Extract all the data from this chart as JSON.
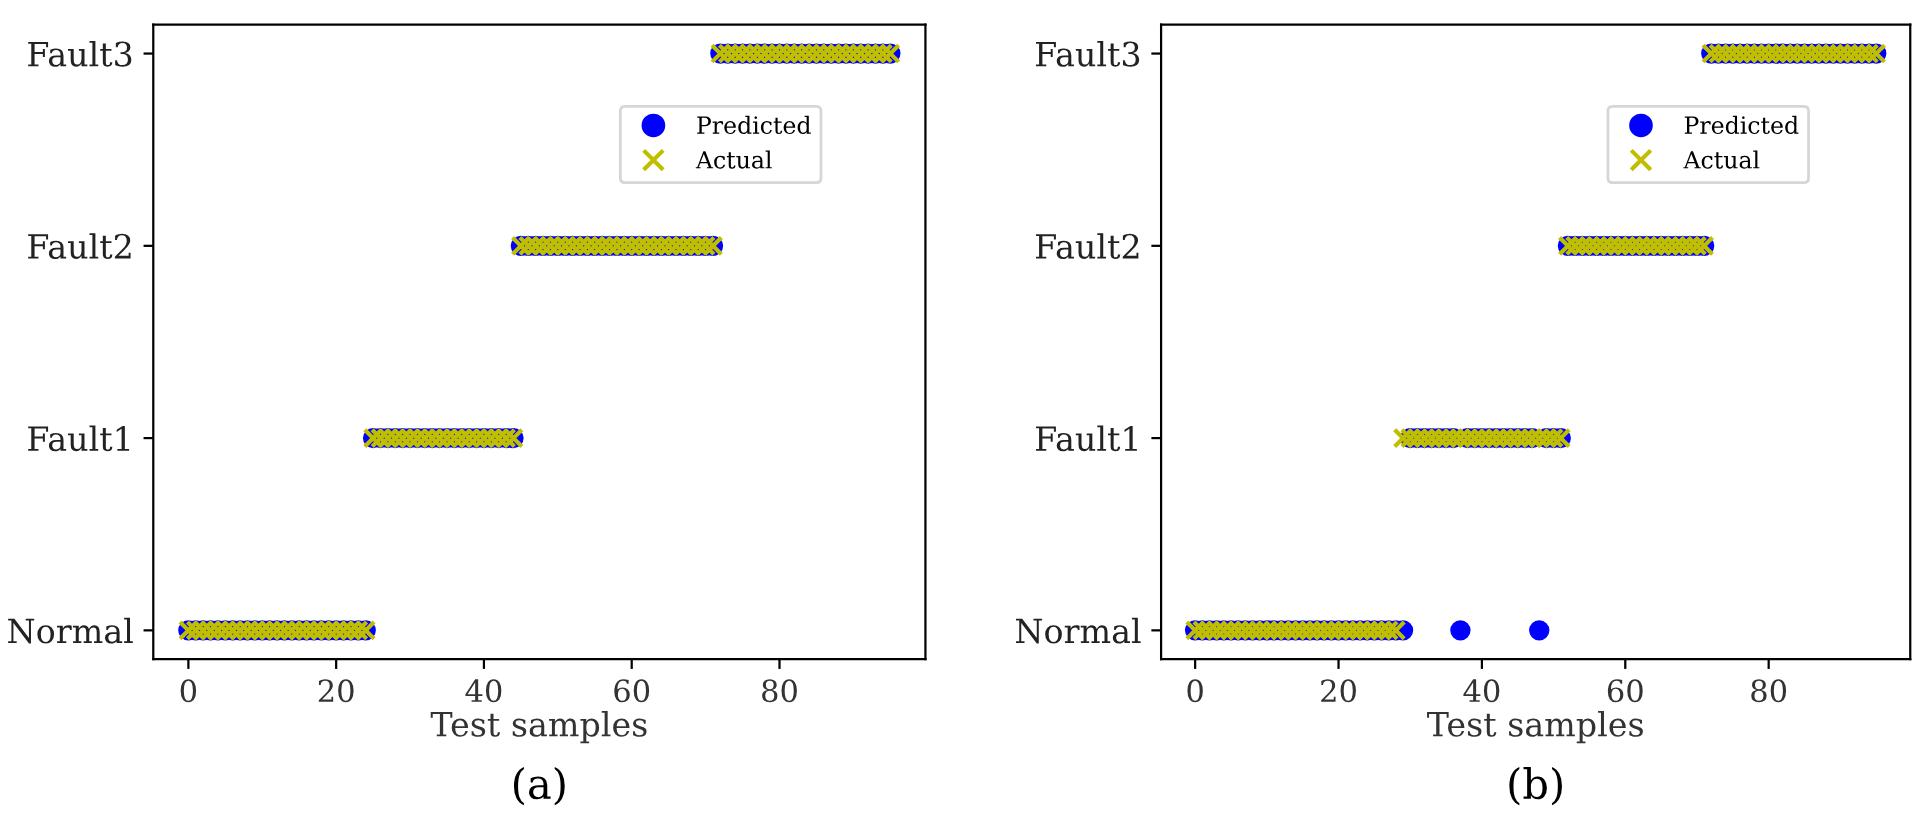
{
  "chart_data": [
    {
      "type": "scatter",
      "orientation": "horizontal",
      "xlabel": "Test samples",
      "annotations": [
        "(a)"
      ],
      "xlim": [
        -4.75,
        99.75
      ],
      "xticks": [
        0,
        20,
        40,
        60,
        80
      ],
      "categories": [
        "Fault3",
        "Fault2",
        "Fault1",
        "Normal"
      ],
      "legend": "top right",
      "grid": false,
      "series": [
        {
          "name": "Predicted",
          "color": "#0000ff",
          "marker": "circle",
          "values": [
            0,
            1,
            2,
            3,
            4,
            5,
            6,
            7,
            8,
            9,
            10,
            11,
            12,
            13,
            14,
            15,
            16,
            17,
            18,
            19,
            20,
            21,
            22,
            23,
            24,
            25,
            26,
            27,
            28,
            29,
            30,
            31,
            32,
            33,
            34,
            35,
            36,
            37,
            38,
            39,
            40,
            41,
            42,
            43,
            44,
            45,
            46,
            47,
            48,
            49,
            50,
            51,
            52,
            53,
            54,
            55,
            56,
            57,
            58,
            59,
            60,
            61,
            62,
            63,
            64,
            65,
            66,
            67,
            68,
            69,
            70,
            71,
            72,
            73,
            74,
            75,
            76,
            77,
            78,
            79,
            80,
            81,
            82,
            83,
            84,
            85,
            86,
            87,
            88,
            89,
            90,
            91,
            92,
            93,
            94,
            95
          ],
          "x": [
            "Normal",
            "Normal",
            "Normal",
            "Normal",
            "Normal",
            "Normal",
            "Normal",
            "Normal",
            "Normal",
            "Normal",
            "Normal",
            "Normal",
            "Normal",
            "Normal",
            "Normal",
            "Normal",
            "Normal",
            "Normal",
            "Normal",
            "Normal",
            "Normal",
            "Normal",
            "Normal",
            "Normal",
            "Normal",
            "Fault1",
            "Fault1",
            "Fault1",
            "Fault1",
            "Fault1",
            "Fault1",
            "Fault1",
            "Fault1",
            "Fault1",
            "Fault1",
            "Fault1",
            "Fault1",
            "Fault1",
            "Fault1",
            "Fault1",
            "Fault1",
            "Fault1",
            "Fault1",
            "Fault1",
            "Fault1",
            "Fault2",
            "Fault2",
            "Fault2",
            "Fault2",
            "Fault2",
            "Fault2",
            "Fault2",
            "Fault2",
            "Fault2",
            "Fault2",
            "Fault2",
            "Fault2",
            "Fault2",
            "Fault2",
            "Fault2",
            "Fault2",
            "Fault2",
            "Fault2",
            "Fault2",
            "Fault2",
            "Fault2",
            "Fault2",
            "Fault2",
            "Fault2",
            "Fault2",
            "Fault2",
            "Fault2",
            "Fault3",
            "Fault3",
            "Fault3",
            "Fault3",
            "Fault3",
            "Fault3",
            "Fault3",
            "Fault3",
            "Fault3",
            "Fault3",
            "Fault3",
            "Fault3",
            "Fault3",
            "Fault3",
            "Fault3",
            "Fault3",
            "Fault3",
            "Fault3",
            "Fault3",
            "Fault3",
            "Fault3",
            "Fault3",
            "Fault3",
            "Fault3"
          ]
        },
        {
          "name": "Actual",
          "color": "#bfbf00",
          "marker": "cross",
          "values": [
            0,
            1,
            2,
            3,
            4,
            5,
            6,
            7,
            8,
            9,
            10,
            11,
            12,
            13,
            14,
            15,
            16,
            17,
            18,
            19,
            20,
            21,
            22,
            23,
            24,
            25,
            26,
            27,
            28,
            29,
            30,
            31,
            32,
            33,
            34,
            35,
            36,
            37,
            38,
            39,
            40,
            41,
            42,
            43,
            44,
            45,
            46,
            47,
            48,
            49,
            50,
            51,
            52,
            53,
            54,
            55,
            56,
            57,
            58,
            59,
            60,
            61,
            62,
            63,
            64,
            65,
            66,
            67,
            68,
            69,
            70,
            71,
            72,
            73,
            74,
            75,
            76,
            77,
            78,
            79,
            80,
            81,
            82,
            83,
            84,
            85,
            86,
            87,
            88,
            89,
            90,
            91,
            92,
            93,
            94,
            95
          ],
          "x": [
            "Normal",
            "Normal",
            "Normal",
            "Normal",
            "Normal",
            "Normal",
            "Normal",
            "Normal",
            "Normal",
            "Normal",
            "Normal",
            "Normal",
            "Normal",
            "Normal",
            "Normal",
            "Normal",
            "Normal",
            "Normal",
            "Normal",
            "Normal",
            "Normal",
            "Normal",
            "Normal",
            "Normal",
            "Normal",
            "Fault1",
            "Fault1",
            "Fault1",
            "Fault1",
            "Fault1",
            "Fault1",
            "Fault1",
            "Fault1",
            "Fault1",
            "Fault1",
            "Fault1",
            "Fault1",
            "Fault1",
            "Fault1",
            "Fault1",
            "Fault1",
            "Fault1",
            "Fault1",
            "Fault1",
            "Fault1",
            "Fault2",
            "Fault2",
            "Fault2",
            "Fault2",
            "Fault2",
            "Fault2",
            "Fault2",
            "Fault2",
            "Fault2",
            "Fault2",
            "Fault2",
            "Fault2",
            "Fault2",
            "Fault2",
            "Fault2",
            "Fault2",
            "Fault2",
            "Fault2",
            "Fault2",
            "Fault2",
            "Fault2",
            "Fault2",
            "Fault2",
            "Fault2",
            "Fault2",
            "Fault2",
            "Fault2",
            "Fault3",
            "Fault3",
            "Fault3",
            "Fault3",
            "Fault3",
            "Fault3",
            "Fault3",
            "Fault3",
            "Fault3",
            "Fault3",
            "Fault3",
            "Fault3",
            "Fault3",
            "Fault3",
            "Fault3",
            "Fault3",
            "Fault3",
            "Fault3",
            "Fault3",
            "Fault3",
            "Fault3",
            "Fault3",
            "Fault3",
            "Fault3"
          ]
        }
      ]
    },
    {
      "type": "scatter",
      "orientation": "horizontal",
      "xlabel": "Test samples",
      "annotations": [
        "(b)"
      ],
      "xlim": [
        -4.75,
        99.75
      ],
      "xticks": [
        0,
        20,
        40,
        60,
        80
      ],
      "categories": [
        "Fault3",
        "Fault2",
        "Fault1",
        "Normal"
      ],
      "legend": "top right",
      "grid": false,
      "series": [
        {
          "name": "Predicted",
          "color": "#0000ff",
          "marker": "circle",
          "values": [
            0,
            1,
            2,
            3,
            4,
            5,
            6,
            7,
            8,
            9,
            10,
            11,
            12,
            13,
            14,
            15,
            16,
            17,
            18,
            19,
            20,
            21,
            22,
            23,
            24,
            25,
            26,
            27,
            28,
            29,
            30,
            31,
            32,
            33,
            34,
            35,
            36,
            37,
            38,
            39,
            40,
            41,
            42,
            43,
            44,
            45,
            46,
            47,
            48,
            49,
            50,
            51,
            52,
            53,
            54,
            55,
            56,
            57,
            58,
            59,
            60,
            61,
            62,
            63,
            64,
            65,
            66,
            67,
            68,
            69,
            70,
            71,
            72,
            73,
            74,
            75,
            76,
            77,
            78,
            79,
            80,
            81,
            82,
            83,
            84,
            85,
            86,
            87,
            88,
            89,
            90,
            91,
            92,
            93,
            94,
            95
          ],
          "x": [
            "Normal",
            "Normal",
            "Normal",
            "Normal",
            "Normal",
            "Normal",
            "Normal",
            "Normal",
            "Normal",
            "Normal",
            "Normal",
            "Normal",
            "Normal",
            "Normal",
            "Normal",
            "Normal",
            "Normal",
            "Normal",
            "Normal",
            "Normal",
            "Normal",
            "Normal",
            "Normal",
            "Normal",
            "Normal",
            "Normal",
            "Normal",
            "Normal",
            "Normal",
            "Normal",
            "Fault1",
            "Fault1",
            "Fault1",
            "Fault1",
            "Fault1",
            "Fault1",
            "Fault1",
            "Normal",
            "Fault1",
            "Fault1",
            "Fault1",
            "Fault1",
            "Fault1",
            "Fault1",
            "Fault1",
            "Fault1",
            "Fault1",
            "Fault1",
            "Normal",
            "Fault1",
            "Fault1",
            "Fault1",
            "Fault2",
            "Fault2",
            "Fault2",
            "Fault2",
            "Fault2",
            "Fault2",
            "Fault2",
            "Fault2",
            "Fault2",
            "Fault2",
            "Fault2",
            "Fault2",
            "Fault2",
            "Fault2",
            "Fault2",
            "Fault2",
            "Fault2",
            "Fault2",
            "Fault2",
            "Fault2",
            "Fault3",
            "Fault3",
            "Fault3",
            "Fault3",
            "Fault3",
            "Fault3",
            "Fault3",
            "Fault3",
            "Fault3",
            "Fault3",
            "Fault3",
            "Fault3",
            "Fault3",
            "Fault3",
            "Fault3",
            "Fault3",
            "Fault3",
            "Fault3",
            "Fault3",
            "Fault3",
            "Fault3",
            "Fault3",
            "Fault3",
            "Fault3"
          ]
        },
        {
          "name": "Actual",
          "color": "#bfbf00",
          "marker": "cross",
          "values": [
            0,
            1,
            2,
            3,
            4,
            5,
            6,
            7,
            8,
            9,
            10,
            11,
            12,
            13,
            14,
            15,
            16,
            17,
            18,
            19,
            20,
            21,
            22,
            23,
            24,
            25,
            26,
            27,
            28,
            29,
            30,
            31,
            32,
            33,
            34,
            35,
            36,
            37,
            38,
            39,
            40,
            41,
            42,
            43,
            44,
            45,
            46,
            47,
            48,
            49,
            50,
            51,
            52,
            53,
            54,
            55,
            56,
            57,
            58,
            59,
            60,
            61,
            62,
            63,
            64,
            65,
            66,
            67,
            68,
            69,
            70,
            71,
            72,
            73,
            74,
            75,
            76,
            77,
            78,
            79,
            80,
            81,
            82,
            83,
            84,
            85,
            86,
            87,
            88,
            89,
            90,
            91,
            92,
            93,
            94,
            95
          ],
          "x": [
            "Normal",
            "Normal",
            "Normal",
            "Normal",
            "Normal",
            "Normal",
            "Normal",
            "Normal",
            "Normal",
            "Normal",
            "Normal",
            "Normal",
            "Normal",
            "Normal",
            "Normal",
            "Normal",
            "Normal",
            "Normal",
            "Normal",
            "Normal",
            "Normal",
            "Normal",
            "Normal",
            "Normal",
            "Normal",
            "Normal",
            "Normal",
            "Normal",
            "Normal",
            "Fault1",
            "Fault1",
            "Fault1",
            "Fault1",
            "Fault1",
            "Fault1",
            "Fault1",
            "Fault1",
            "Fault1",
            "Fault1",
            "Fault1",
            "Fault1",
            "Fault1",
            "Fault1",
            "Fault1",
            "Fault1",
            "Fault1",
            "Fault1",
            "Fault1",
            "Fault1",
            "Fault1",
            "Fault1",
            "Fault1",
            "Fault2",
            "Fault2",
            "Fault2",
            "Fault2",
            "Fault2",
            "Fault2",
            "Fault2",
            "Fault2",
            "Fault2",
            "Fault2",
            "Fault2",
            "Fault2",
            "Fault2",
            "Fault2",
            "Fault2",
            "Fault2",
            "Fault2",
            "Fault2",
            "Fault2",
            "Fault2",
            "Fault3",
            "Fault3",
            "Fault3",
            "Fault3",
            "Fault3",
            "Fault3",
            "Fault3",
            "Fault3",
            "Fault3",
            "Fault3",
            "Fault3",
            "Fault3",
            "Fault3",
            "Fault3",
            "Fault3",
            "Fault3",
            "Fault3",
            "Fault3",
            "Fault3",
            "Fault3",
            "Fault3",
            "Fault3",
            "Fault3",
            "Fault3"
          ]
        }
      ]
    }
  ]
}
